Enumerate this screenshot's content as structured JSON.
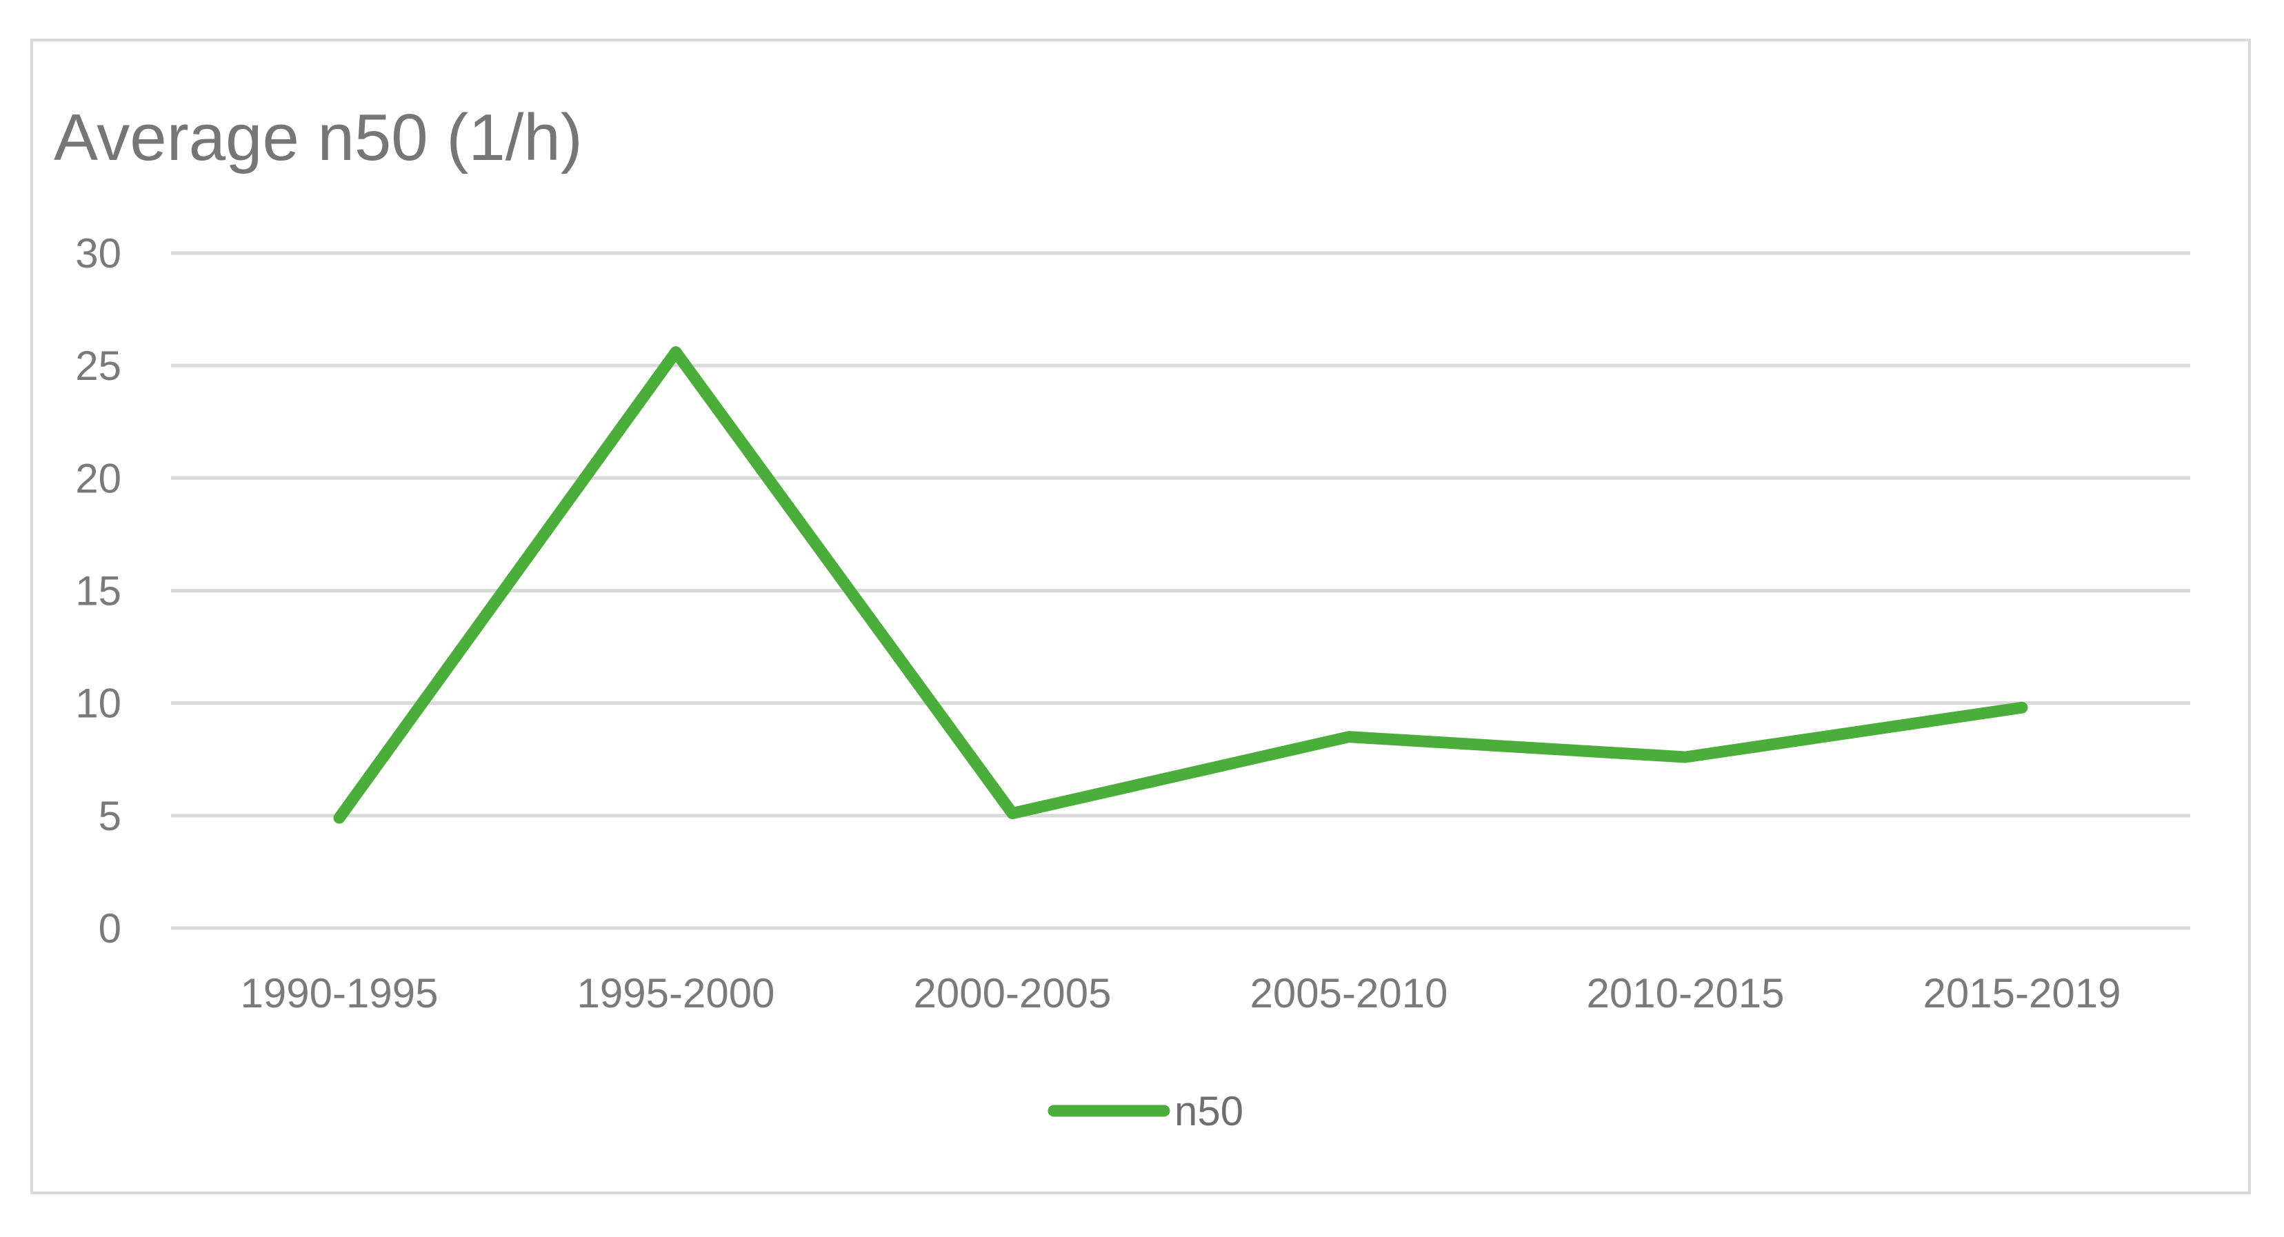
{
  "chart_data": {
    "type": "line",
    "title": "Average n50 (1/h)",
    "xlabel": "",
    "ylabel": "",
    "categories": [
      "1990-1995",
      "1995-2000",
      "2000-2005",
      "2005-2010",
      "2010-2015",
      "2015-2019"
    ],
    "series": [
      {
        "name": "n50",
        "values": [
          4.9,
          25.6,
          5.1,
          8.5,
          7.6,
          9.8
        ],
        "color": "#4cae3a"
      }
    ],
    "ylim": [
      0,
      30
    ],
    "yticks": [
      "0",
      "5",
      "10",
      "15",
      "20",
      "25",
      "30"
    ],
    "grid": true,
    "legend_position": "bottom"
  }
}
